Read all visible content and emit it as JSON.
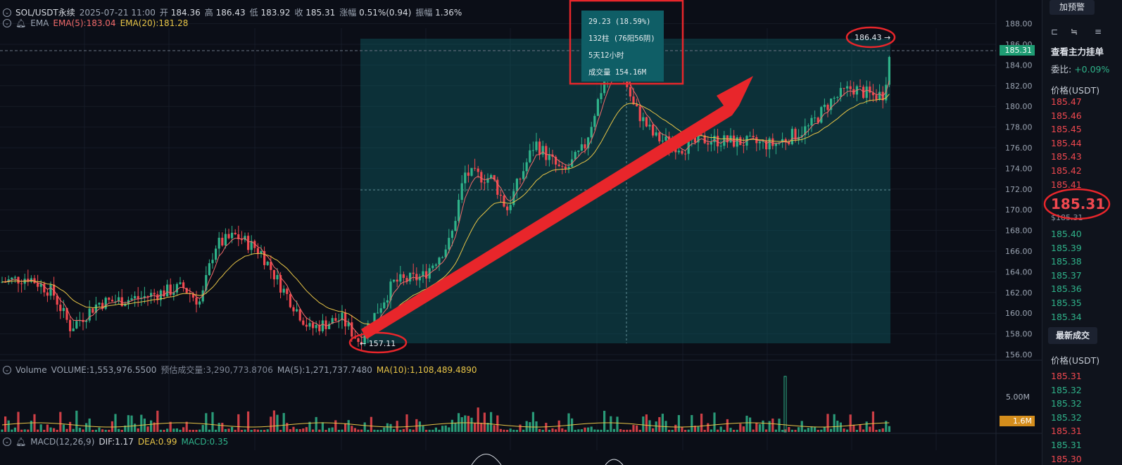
{
  "header": {
    "symbol": "SOL/USDT永续",
    "datetime": "2025-07-21 11:00",
    "open_label": "开",
    "open": "184.36",
    "high_label": "高",
    "high": "186.43",
    "low_label": "低",
    "low": "183.92",
    "close_label": "收",
    "close": "185.31",
    "change_label": "涨幅",
    "change": "0.51%(0.94)",
    "amp_label": "振幅",
    "amp": "1.36%"
  },
  "ema": {
    "label": "EMA",
    "ema5": "EMA(5):183.04",
    "ema20": "EMA(20):181.28"
  },
  "volume": {
    "label": "Volume",
    "volume": "VOLUME:1,553,976.5500",
    "est": "预估成交量:3,290,773.8706",
    "ma5": "MA(5):1,271,737.7480",
    "ma10": "MA(10):1,108,489.4890",
    "axis_tick": "5.00M",
    "current": "1.6M"
  },
  "macd": {
    "label": "MACD(12,26,9)",
    "dif": "DIF:1.17",
    "dea": "DEA:0.99",
    "macd": "MACD:0.35"
  },
  "tooltip": {
    "line1": "29.23 (18.59%)",
    "line2": "132柱 (76阳56阴)",
    "line3": "5天12小时",
    "line4": "成交量 154.16M"
  },
  "markers": {
    "high": "186.43 →",
    "low": "← 157.11",
    "last_price": "185.31"
  },
  "price_axis": [
    "188.00",
    "186.00",
    "184.00",
    "182.00",
    "180.00",
    "178.00",
    "176.00",
    "174.00",
    "172.00",
    "170.00",
    "168.00",
    "166.00",
    "164.00",
    "162.00",
    "160.00",
    "158.00",
    "156.00"
  ],
  "side": {
    "alert_button": "加预警",
    "main_orders": "查看主力挂单",
    "ratio_label": "委比:",
    "ratio": "+0.09%",
    "price_header": "价格(USDT)",
    "asks": [
      "185.47",
      "185.46",
      "185.45",
      "185.44",
      "185.43",
      "185.42",
      "185.41"
    ],
    "big_price": "185.31",
    "mark_price": "$185.31",
    "bids": [
      "185.40",
      "185.39",
      "185.38",
      "185.37",
      "185.36",
      "185.35",
      "185.34"
    ],
    "latest_trades": "最新成交",
    "trades_header": "价格(USDT)",
    "trades": [
      "185.31",
      "185.32",
      "185.32",
      "185.32",
      "185.31",
      "185.31",
      "185.30"
    ],
    "trade_colors": [
      "#f1484f",
      "#2fb38a",
      "#2fb38a",
      "#2fb38a",
      "#f1484f",
      "#2fb38a",
      "#f1484f"
    ]
  },
  "colors": {
    "up": "#2fb38a",
    "down": "#f1484f",
    "ema5": "#f16a6a",
    "ema20": "#e8c547",
    "annotation": "#e8262b"
  }
}
